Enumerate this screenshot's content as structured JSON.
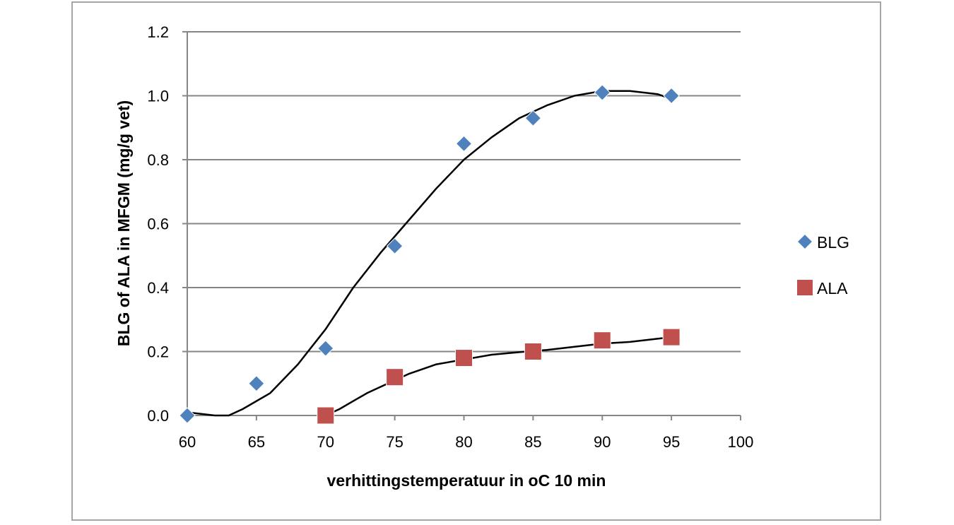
{
  "chart_data": {
    "type": "scatter",
    "title": "",
    "xlabel": "verhittingstemperatuur in oC 10 min",
    "ylabel": "BLG of ALA in MFGM (mg/g vet)",
    "xlim": [
      60,
      100
    ],
    "ylim": [
      0,
      1.2
    ],
    "x_ticks": [
      "60",
      "65",
      "70",
      "75",
      "80",
      "85",
      "90",
      "95",
      "100"
    ],
    "y_ticks": [
      "0.0",
      "0.2",
      "0.4",
      "0.6",
      "0.8",
      "1.0",
      "1.2"
    ],
    "grid": "horizontal",
    "legend_position": "right",
    "series": [
      {
        "name": "BLG",
        "marker": "diamond",
        "color": "#4f81bd",
        "points": [
          [
            60,
            0.0
          ],
          [
            65,
            0.1
          ],
          [
            70,
            0.21
          ],
          [
            75,
            0.53
          ],
          [
            80,
            0.85
          ],
          [
            85,
            0.93
          ],
          [
            90,
            1.01
          ],
          [
            95,
            1.0
          ]
        ],
        "trendline": [
          [
            60,
            0.01
          ],
          [
            62,
            0.0
          ],
          [
            63,
            0.0
          ],
          [
            64,
            0.02
          ],
          [
            66,
            0.07
          ],
          [
            68,
            0.16
          ],
          [
            70,
            0.27
          ],
          [
            72,
            0.4
          ],
          [
            74,
            0.51
          ],
          [
            76,
            0.61
          ],
          [
            78,
            0.71
          ],
          [
            80,
            0.8
          ],
          [
            82,
            0.87
          ],
          [
            84,
            0.93
          ],
          [
            86,
            0.97
          ],
          [
            88,
            1.0
          ],
          [
            90,
            1.015
          ],
          [
            92,
            1.015
          ],
          [
            94,
            1.005
          ],
          [
            95,
            0.99
          ]
        ]
      },
      {
        "name": "ALA",
        "marker": "square",
        "color": "#c0504d",
        "points": [
          [
            70,
            0.0
          ],
          [
            75,
            0.12
          ],
          [
            80,
            0.18
          ],
          [
            85,
            0.2
          ],
          [
            90,
            0.235
          ],
          [
            95,
            0.245
          ]
        ],
        "trendline": [
          [
            70,
            0.0
          ],
          [
            71,
            0.02
          ],
          [
            72,
            0.045
          ],
          [
            73,
            0.07
          ],
          [
            74,
            0.09
          ],
          [
            75,
            0.11
          ],
          [
            76,
            0.13
          ],
          [
            77,
            0.145
          ],
          [
            78,
            0.16
          ],
          [
            80,
            0.175
          ],
          [
            82,
            0.19
          ],
          [
            84,
            0.198
          ],
          [
            86,
            0.205
          ],
          [
            88,
            0.215
          ],
          [
            90,
            0.225
          ],
          [
            92,
            0.23
          ],
          [
            94,
            0.24
          ],
          [
            95,
            0.245
          ]
        ]
      }
    ]
  }
}
